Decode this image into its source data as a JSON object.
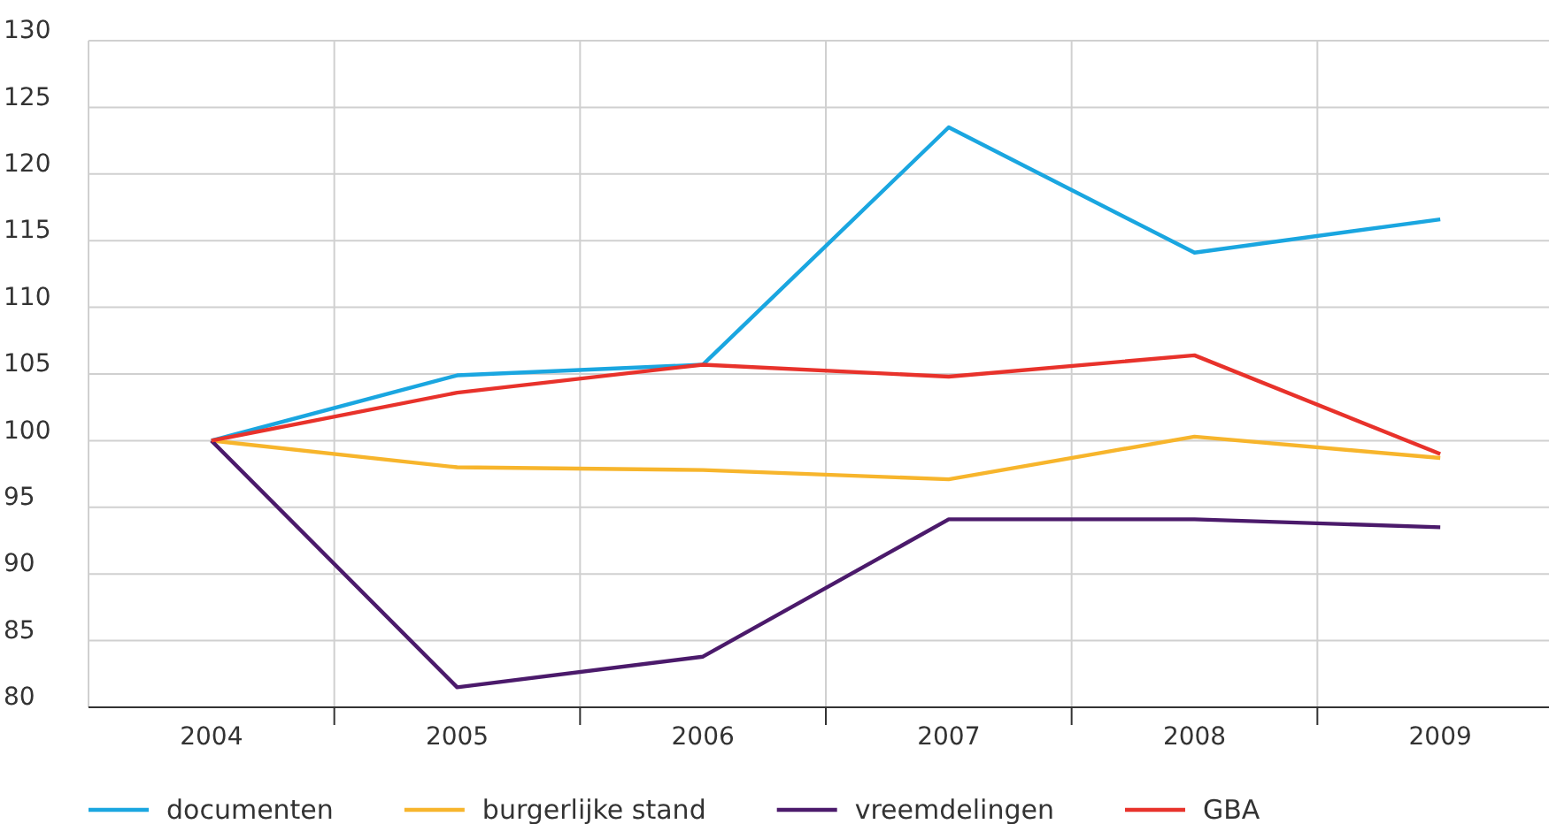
{
  "chart_data": {
    "type": "line",
    "categories": [
      "2004",
      "2005",
      "2006",
      "2007",
      "2008",
      "2009"
    ],
    "series": [
      {
        "name": "documenten",
        "color": "#1aa6e0",
        "values": [
          100,
          104.9,
          105.7,
          123.5,
          114.1,
          116.6
        ]
      },
      {
        "name": "burgerlijke stand",
        "color": "#f7b52c",
        "values": [
          100,
          98.0,
          97.8,
          97.1,
          100.3,
          98.7
        ]
      },
      {
        "name": "vreemdelingen",
        "color": "#4b1a6b",
        "values": [
          100,
          81.5,
          83.8,
          94.1,
          94.1,
          93.5
        ]
      },
      {
        "name": "GBA",
        "color": "#e8322b",
        "values": [
          100,
          103.6,
          105.7,
          104.8,
          106.4,
          99.0
        ]
      }
    ],
    "ylim": [
      80,
      130
    ],
    "yticks": [
      80,
      85,
      90,
      95,
      100,
      105,
      110,
      115,
      120,
      125,
      130
    ],
    "grid": true,
    "legend": "bottom",
    "marker": "none",
    "line_style": "solid"
  }
}
